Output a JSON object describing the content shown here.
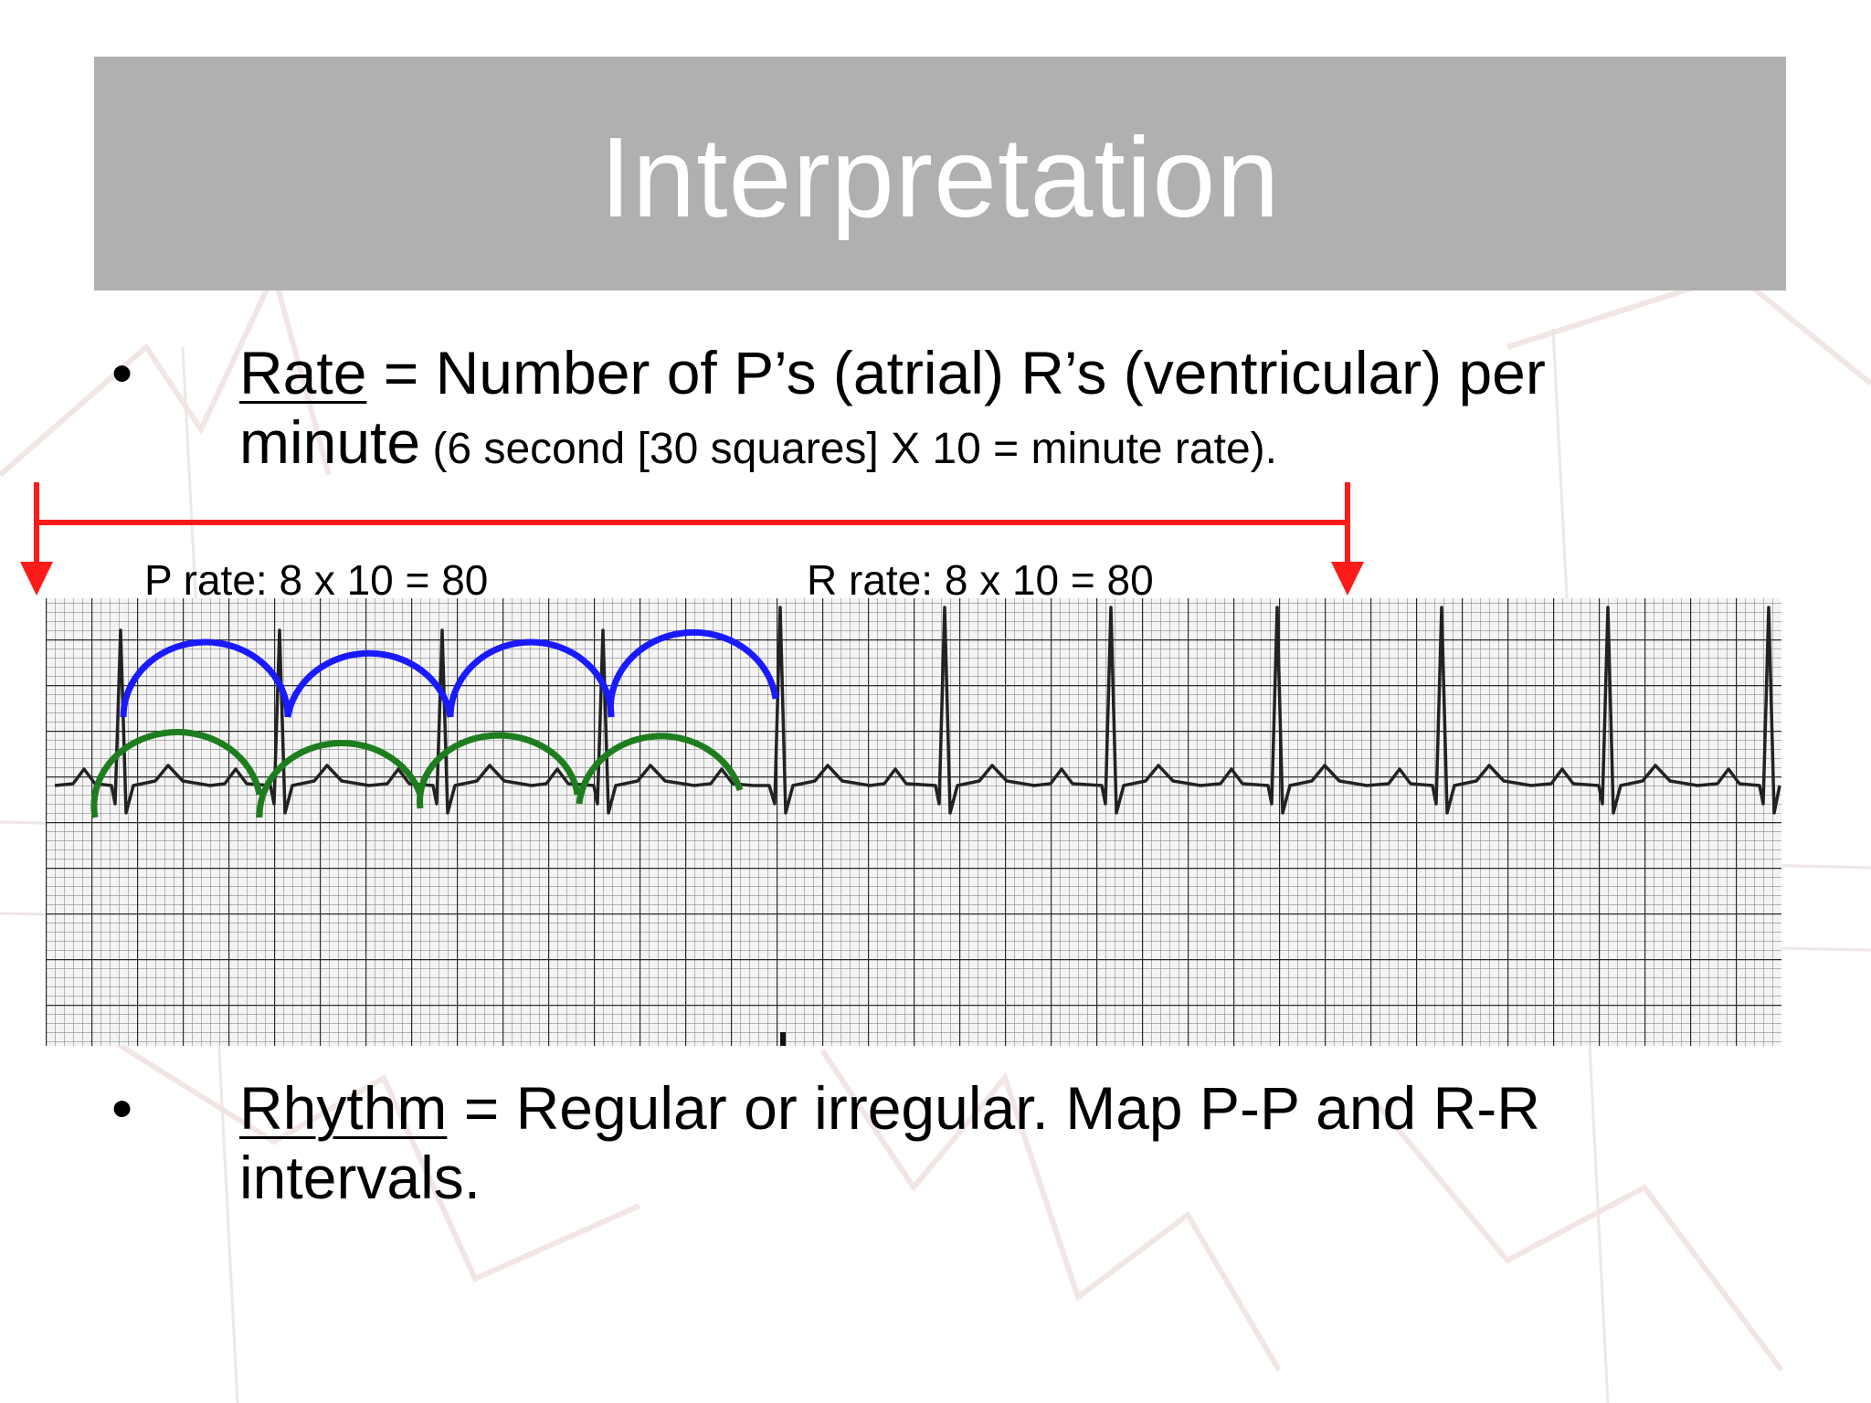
{
  "slide": {
    "title": "Interpretation"
  },
  "bullets": [
    {
      "marker": "•",
      "term": "Rate",
      "text_line1": " = Number of P’s (atrial) R’s (ventricular) per",
      "text_line2_main": "minute",
      "text_line2_note": " (6 second [30 squares] X 10 = minute rate)."
    },
    {
      "marker": "•",
      "term": "Rhythm",
      "text_line1": " = Regular or irregular. Map P-P and R-R",
      "text_line2_main": "intervals."
    }
  ],
  "ecg_strip": {
    "p_rate_label": "P rate: 8 x 10 = 80",
    "r_rate_label": "R rate: 8 x 10 = 80",
    "colors": {
      "arrow": "#ff1a1a",
      "r_arcs": "#1a1aff",
      "p_arcs": "#1e7d1e",
      "grid": "#555555",
      "trace": "#222222"
    }
  }
}
